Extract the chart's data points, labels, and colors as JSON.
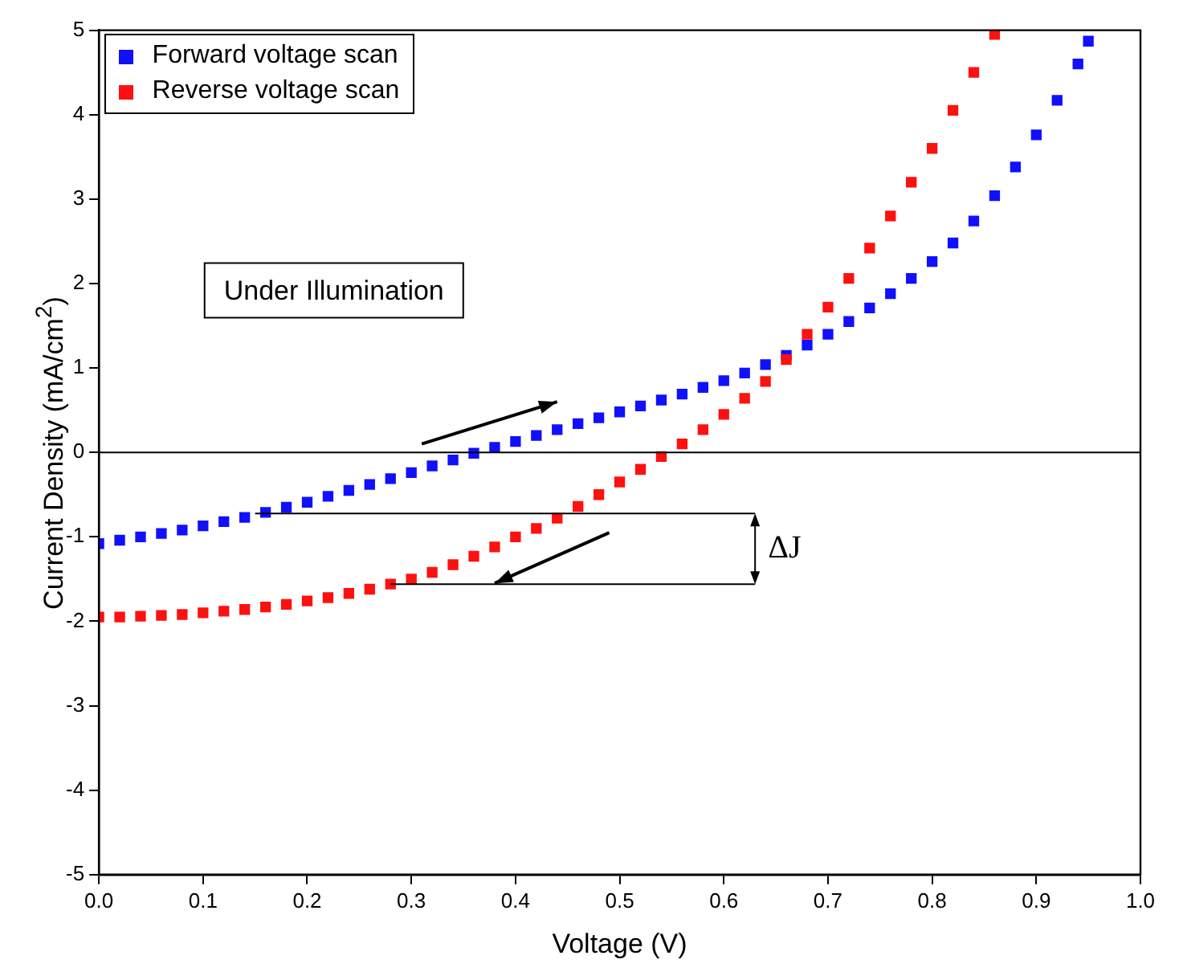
{
  "chart_data": {
    "type": "scatter",
    "xlabel": "Voltage (V)",
    "ylabel": "Current Density (mA/cm$^{2}$)",
    "xlim": [
      0,
      1
    ],
    "xticks": [
      {
        "value": 0,
        "label": "0.0"
      },
      0.1,
      0.2,
      0.3,
      0.4,
      0.5,
      0.6,
      0.7,
      0.8,
      0.9,
      {
        "value": 1,
        "label": "1.0"
      }
    ],
    "ylim": [
      -5,
      5
    ],
    "yticks": [
      -5,
      -4,
      -3,
      -2,
      -1,
      0,
      1,
      2,
      3,
      4,
      5
    ],
    "grid": false,
    "legend": "top left",
    "marker": "square",
    "ref_lines": [
      {
        "axis": "y",
        "value": 0,
        "color": "#000000"
      }
    ],
    "annotations": [
      "Under Illumination",
      {
        "text": "ΔJ",
        "x": 0.28,
        "y": -1.56
      }
    ],
    "series": [
      {
        "name": "Forward voltage scan",
        "color": "#1010ff",
        "x": [
          0,
          0.02,
          0.04,
          0.06,
          0.08,
          0.1,
          0.12,
          0.14,
          0.16,
          0.18,
          0.2,
          0.22,
          0.24,
          0.26,
          0.28,
          0.3,
          0.32,
          0.34,
          0.36,
          0.38,
          0.4,
          0.42,
          0.44,
          0.46,
          0.48,
          0.5,
          0.52,
          0.54,
          0.56,
          0.58,
          0.6,
          0.62,
          0.64,
          0.66,
          0.68,
          0.7,
          0.72,
          0.74,
          0.76,
          0.78,
          0.8,
          0.82,
          0.84,
          0.86,
          0.88,
          0.9,
          0.92,
          0.94,
          0.95
        ],
        "values": [
          -1.08,
          -1.04,
          -1,
          -0.96,
          -0.92,
          -0.87,
          -0.82,
          -0.77,
          -0.71,
          -0.65,
          -0.59,
          -0.52,
          -0.45,
          -0.38,
          -0.31,
          -0.24,
          -0.16,
          -0.09,
          -0.01,
          0.06,
          0.13,
          0.2,
          0.27,
          0.34,
          0.41,
          0.48,
          0.55,
          0.62,
          0.69,
          0.77,
          0.85,
          0.94,
          1.04,
          1.15,
          1.27,
          1.4,
          1.55,
          1.71,
          1.88,
          2.06,
          2.26,
          2.48,
          2.74,
          3.04,
          3.38,
          3.76,
          4.17,
          4.6,
          4.87
        ]
      },
      {
        "name": "Reverse voltage scan",
        "color": "#ff1010",
        "x": [
          0,
          0.02,
          0.04,
          0.06,
          0.08,
          0.1,
          0.12,
          0.14,
          0.16,
          0.18,
          0.2,
          0.22,
          0.24,
          0.26,
          0.28,
          0.3,
          0.32,
          0.34,
          0.36,
          0.38,
          0.4,
          0.42,
          0.44,
          0.46,
          0.48,
          0.5,
          0.52,
          0.54,
          0.56,
          0.58,
          0.6,
          0.62,
          0.64,
          0.66,
          0.68,
          0.7,
          0.72,
          0.74,
          0.76,
          0.78,
          0.8,
          0.82,
          0.84,
          0.86
        ],
        "values": [
          -1.95,
          -1.95,
          -1.94,
          -1.93,
          -1.92,
          -1.9,
          -1.88,
          -1.86,
          -1.83,
          -1.8,
          -1.76,
          -1.72,
          -1.67,
          -1.62,
          -1.56,
          -1.5,
          -1.42,
          -1.33,
          -1.23,
          -1.12,
          -1,
          -0.9,
          -0.78,
          -0.64,
          -0.5,
          -0.35,
          -0.2,
          -0.05,
          0.1,
          0.27,
          0.45,
          0.64,
          0.84,
          1.1,
          1.4,
          1.72,
          2.06,
          2.42,
          2.8,
          3.2,
          3.6,
          4.05,
          4.5,
          4.95
        ]
      }
    ]
  }
}
